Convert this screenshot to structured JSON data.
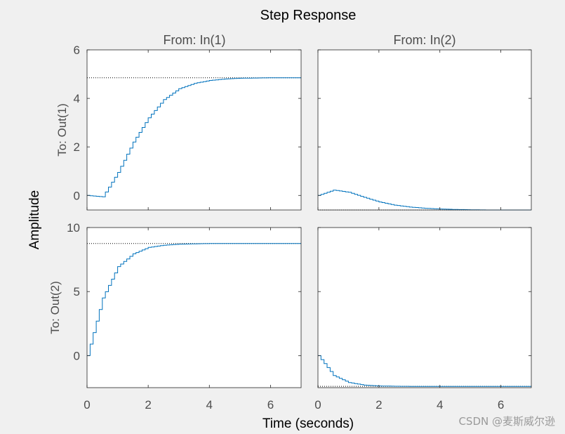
{
  "watermark": "CSDN @麦斯威尔逊",
  "chart_data": {
    "type": "line",
    "plot_style": "stairs",
    "title": "Step Response",
    "xlabel": "Time (seconds)",
    "ylabel": "Amplitude",
    "column_titles": [
      "From: In(1)",
      "From: In(2)"
    ],
    "row_labels": [
      "To: Out(1)",
      "To: Out(2)"
    ],
    "xlim": [
      0,
      7
    ],
    "xticks": [
      0,
      2,
      4,
      6
    ],
    "sample_time": 0.1,
    "line_color": "#0072bd",
    "steady_state_line_color": "#000000",
    "grid": false,
    "rows": [
      {
        "ylim": [
          -0.6,
          6
        ],
        "yticks": [
          0,
          2,
          4,
          6
        ],
        "steady_state": [
          4.85,
          -0.6
        ],
        "series": [
          {
            "x": [
              0,
              0.5,
              1,
              1.5,
              2,
              2.5,
              3,
              3.5,
              4,
              4.5,
              5,
              5.5,
              6,
              6.5,
              7
            ],
            "y": [
              0,
              -0.06,
              0.95,
              2.2,
              3.2,
              3.95,
              4.4,
              4.62,
              4.74,
              4.8,
              4.83,
              4.84,
              4.85,
              4.85,
              4.85
            ]
          },
          {
            "x": [
              0,
              0.5,
              1,
              1.5,
              2,
              2.5,
              3,
              3.5,
              4,
              4.5,
              5,
              5.5,
              6,
              6.5,
              7
            ],
            "y": [
              0,
              0.22,
              0.13,
              -0.08,
              -0.27,
              -0.4,
              -0.48,
              -0.53,
              -0.56,
              -0.58,
              -0.59,
              -0.6,
              -0.6,
              -0.6,
              -0.6
            ]
          }
        ]
      },
      {
        "ylim": [
          -2.5,
          10
        ],
        "yticks": [
          0,
          5,
          10
        ],
        "steady_state": [
          8.75,
          -2.4
        ],
        "series": [
          {
            "x": [
              0,
              0.5,
              1,
              1.5,
              2,
              2.5,
              3,
              3.5,
              4,
              4.5,
              5,
              5.5,
              6,
              6.5,
              7
            ],
            "y": [
              0,
              4.5,
              6.95,
              7.95,
              8.45,
              8.62,
              8.7,
              8.73,
              8.75,
              8.75,
              8.75,
              8.75,
              8.75,
              8.75,
              8.75
            ]
          },
          {
            "x": [
              0,
              0.5,
              1,
              1.5,
              2,
              2.5,
              3,
              3.5,
              4,
              4.5,
              5,
              5.5,
              6,
              6.5,
              7
            ],
            "y": [
              0,
              -1.55,
              -2.1,
              -2.3,
              -2.37,
              -2.39,
              -2.4,
              -2.4,
              -2.4,
              -2.4,
              -2.4,
              -2.4,
              -2.4,
              -2.4,
              -2.4
            ]
          }
        ]
      }
    ]
  }
}
